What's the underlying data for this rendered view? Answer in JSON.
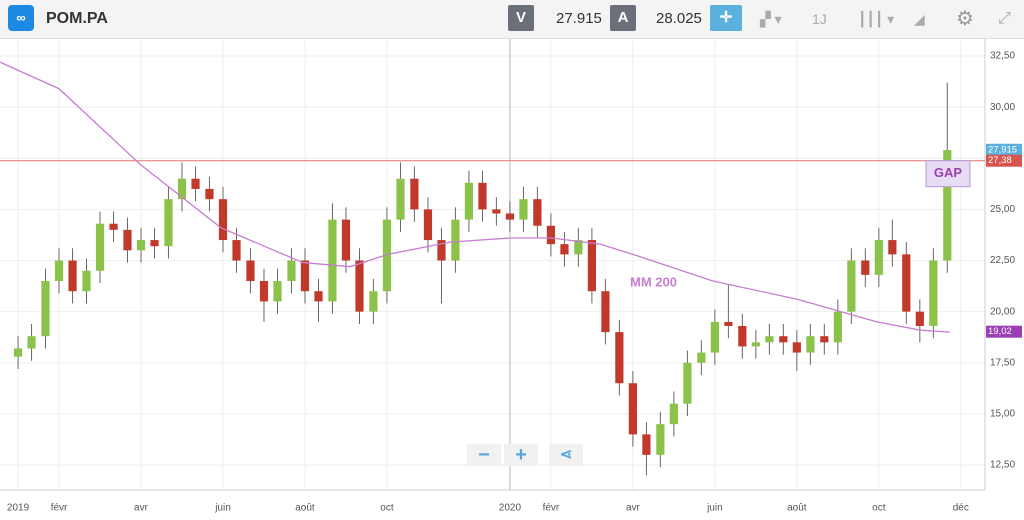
{
  "toolbar": {
    "symbol": "POM.PA",
    "bid_label": "V",
    "bid": "27.915",
    "ask_label": "A",
    "ask": "28.025",
    "interval": "1J"
  },
  "controls": {
    "zoom_out": "−",
    "zoom_in": "+"
  },
  "chart_data": {
    "type": "candlestick",
    "up_color": "#8bc34a",
    "down_color": "#c0392b",
    "xlim": [
      -0.44,
      23.59
    ],
    "xticks": [
      {
        "value": 0,
        "label": "2019"
      },
      {
        "value": 1,
        "label": "févr"
      },
      {
        "value": 3,
        "label": "avr"
      },
      {
        "value": 5,
        "label": "juin"
      },
      {
        "value": 7,
        "label": "août"
      },
      {
        "value": 9,
        "label": "oct"
      },
      {
        "value": 12,
        "label": "2020"
      },
      {
        "value": 13,
        "label": "févr"
      },
      {
        "value": 15,
        "label": "avr"
      },
      {
        "value": 17,
        "label": "juin"
      },
      {
        "value": 19,
        "label": "août"
      },
      {
        "value": 21,
        "label": "oct"
      },
      {
        "value": 23,
        "label": "déc"
      }
    ],
    "ylim": [
      11.28,
      33.38
    ],
    "yticks": [
      {
        "value": 12.5,
        "label": "12,50"
      },
      {
        "value": 15,
        "label": "15,00"
      },
      {
        "value": 17.5,
        "label": "17,50"
      },
      {
        "value": 20,
        "label": "20,00"
      },
      {
        "value": 22.5,
        "label": "22,50"
      },
      {
        "value": 25,
        "label": "25,00"
      },
      {
        "value": 27.5,
        "label": "27,50"
      },
      {
        "value": 30,
        "label": "30,00"
      },
      {
        "value": 32.5,
        "label": "32,50"
      }
    ],
    "grid": true,
    "x": [
      0,
      0.33,
      0.67,
      1,
      1.33,
      1.67,
      2,
      2.33,
      2.67,
      3,
      3.33,
      3.67,
      4,
      4.33,
      4.67,
      5,
      5.33,
      5.67,
      6,
      6.33,
      6.67,
      7,
      7.33,
      7.67,
      8,
      8.33,
      8.67,
      9,
      9.33,
      9.67,
      10,
      10.33,
      10.67,
      11,
      11.33,
      11.67,
      12,
      12.33,
      12.67,
      13,
      13.33,
      13.67,
      14,
      14.33,
      14.67,
      15,
      15.33,
      15.67,
      16,
      16.33,
      16.67,
      17,
      17.33,
      17.67,
      18,
      18.33,
      18.67,
      19,
      19.33,
      19.67,
      20,
      20.33,
      20.67,
      21,
      21.33,
      21.67,
      22,
      22.33,
      22.67
    ],
    "open": [
      17.8,
      18.2,
      18.8,
      21.5,
      22.5,
      21.0,
      22.0,
      24.3,
      24.0,
      23.0,
      23.5,
      23.2,
      25.5,
      26.5,
      26.0,
      25.5,
      23.5,
      22.5,
      21.5,
      20.5,
      21.5,
      22.5,
      21.0,
      20.5,
      24.5,
      22.5,
      20.0,
      21.0,
      24.5,
      26.5,
      25.0,
      23.5,
      22.5,
      24.5,
      26.3,
      25.0,
      24.8,
      24.5,
      25.5,
      24.2,
      23.3,
      22.8,
      23.5,
      21.0,
      19.0,
      16.5,
      14.0,
      13.0,
      14.5,
      15.5,
      17.5,
      18.0,
      19.5,
      19.3,
      18.3,
      18.5,
      18.8,
      18.5,
      18.0,
      18.8,
      18.5,
      20.0,
      22.5,
      21.8,
      23.5,
      22.8,
      20.0,
      19.3,
      22.5
    ],
    "high": [
      18.8,
      19.4,
      22.1,
      23.1,
      23.1,
      22.6,
      24.9,
      24.9,
      24.6,
      24.1,
      24.1,
      26.1,
      27.3,
      27.1,
      26.6,
      26.1,
      24.1,
      23.1,
      22.1,
      22.1,
      23.1,
      23.1,
      21.6,
      25.3,
      25.1,
      23.1,
      21.6,
      25.1,
      27.3,
      27.1,
      25.6,
      24.1,
      25.1,
      26.9,
      26.9,
      25.6,
      25.4,
      26.1,
      26.1,
      24.8,
      23.9,
      24.1,
      24.1,
      21.6,
      19.6,
      17.1,
      14.6,
      15.1,
      16.1,
      18.1,
      18.6,
      20.1,
      21.3,
      19.9,
      19.1,
      19.4,
      19.4,
      19.1,
      19.4,
      19.4,
      20.6,
      23.1,
      23.1,
      24.1,
      24.5,
      23.4,
      20.6,
      23.1,
      31.2
    ],
    "low": [
      17.2,
      17.6,
      18.2,
      20.9,
      20.4,
      20.4,
      21.4,
      23.4,
      22.4,
      22.4,
      22.6,
      22.6,
      24.9,
      25.4,
      24.9,
      22.9,
      21.9,
      20.9,
      19.5,
      19.9,
      20.9,
      20.4,
      19.5,
      19.9,
      21.9,
      19.4,
      19.4,
      20.4,
      23.9,
      24.4,
      22.9,
      20.4,
      21.9,
      23.9,
      24.4,
      24.2,
      23.9,
      23.9,
      23.6,
      22.7,
      22.2,
      22.2,
      20.4,
      18.4,
      15.9,
      13.4,
      12.0,
      12.4,
      13.9,
      14.9,
      16.9,
      17.4,
      18.7,
      17.7,
      17.7,
      17.9,
      17.9,
      17.1,
      17.4,
      17.9,
      17.9,
      19.4,
      21.2,
      21.2,
      22.2,
      19.4,
      18.5,
      18.7,
      21.9
    ],
    "close": [
      18.2,
      18.8,
      21.5,
      22.5,
      21.0,
      22.0,
      24.3,
      24.0,
      23.0,
      23.5,
      23.2,
      25.5,
      26.5,
      26.0,
      25.5,
      23.5,
      22.5,
      21.5,
      20.5,
      21.5,
      22.5,
      21.0,
      20.5,
      24.5,
      22.5,
      20.0,
      21.0,
      24.5,
      26.5,
      25.0,
      23.5,
      22.5,
      24.5,
      26.3,
      25.0,
      24.8,
      24.5,
      25.5,
      24.2,
      23.3,
      22.8,
      23.5,
      21.0,
      19.0,
      16.5,
      14.0,
      13.0,
      14.5,
      15.5,
      17.5,
      18.0,
      19.5,
      19.3,
      18.3,
      18.5,
      18.8,
      18.5,
      18.0,
      18.8,
      18.5,
      20.0,
      22.5,
      21.8,
      23.5,
      22.8,
      20.0,
      19.3,
      22.5,
      27.9
    ],
    "moving_average": {
      "name": "MM 200",
      "color": "#c77dd1",
      "x": [
        -0.44,
        1,
        2.98,
        4.95,
        6.95,
        8.1,
        9.02,
        10.54,
        12,
        13.02,
        14.2,
        15,
        16.95,
        19.02,
        20.95,
        22,
        22.73
      ],
      "values": [
        32.2,
        30.9,
        27.2,
        24.1,
        22.4,
        22.2,
        22.8,
        23.4,
        23.6,
        23.6,
        23.3,
        22.8,
        21.5,
        20.6,
        19.5,
        19.1,
        19.0
      ]
    },
    "hline": {
      "value": 27.38,
      "color": "#e57368"
    },
    "price_labels": [
      {
        "value": 27.915,
        "label": "27,915",
        "color": "#5bb0de"
      },
      {
        "value": 27.38,
        "label": "27,38",
        "color": "#d9534f"
      },
      {
        "value": 19.02,
        "label": "19,02",
        "color": "#9b3fb5"
      }
    ],
    "annotations": {
      "gap": "GAP",
      "ma": "MM 200"
    }
  }
}
